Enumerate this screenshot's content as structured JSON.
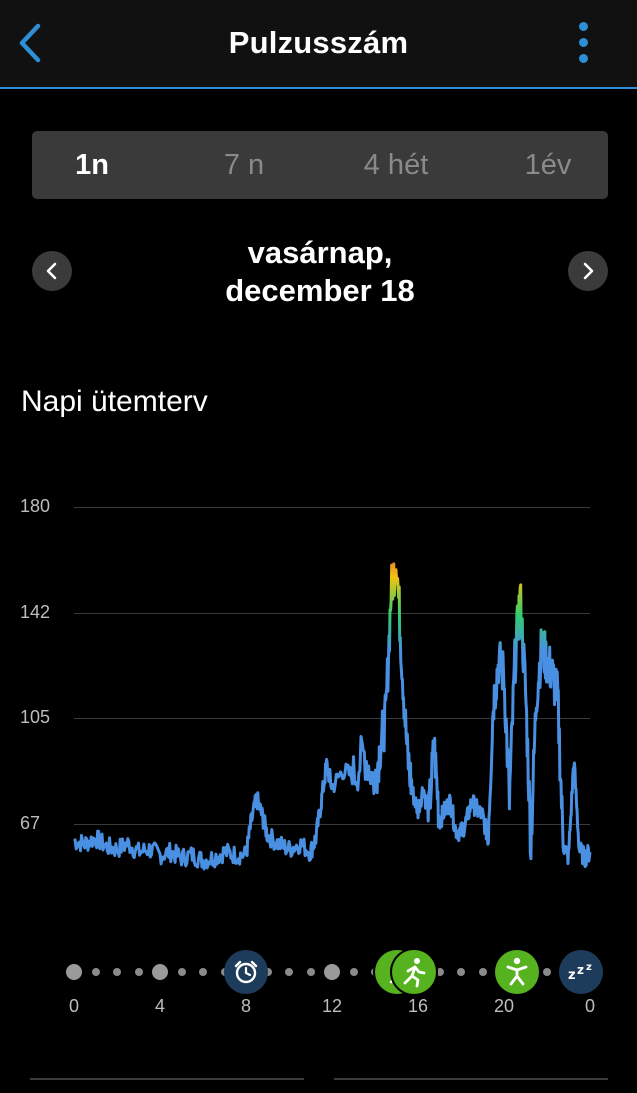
{
  "header": {
    "title": "Pulzusszám",
    "back_icon": "chevron-left-icon",
    "menu_icon": "kebab-menu-icon",
    "accent": "#2f8fd6"
  },
  "range_tabs": [
    {
      "label": "1n",
      "active": true
    },
    {
      "label": "7 n",
      "active": false
    },
    {
      "label": "4 hét",
      "active": false
    },
    {
      "label": "1év",
      "active": false
    }
  ],
  "date_nav": {
    "line1": "vasárnap,",
    "line2": "december 18"
  },
  "section_title": "Napi ütemterv",
  "chart_data": {
    "type": "line",
    "title": "",
    "xlabel": "",
    "ylabel": "",
    "y_ticks": [
      "180",
      "142",
      "105",
      "67"
    ],
    "ylim": [
      40,
      180
    ],
    "x_ticks": [
      "0",
      "4",
      "8",
      "12",
      "16",
      "20",
      "0"
    ],
    "xlim": [
      0,
      24
    ],
    "grid": true,
    "series": [
      {
        "x": [
          0,
          0.5,
          1,
          1.5,
          2,
          2.5,
          3,
          3.5,
          4,
          4.5,
          5,
          5.5,
          6,
          6.5,
          7,
          7.5,
          8,
          8.25,
          8.5,
          8.75,
          9,
          9.5,
          10,
          10.5,
          11,
          11.25,
          11.5,
          11.75,
          12,
          12.5,
          13,
          13.5,
          14,
          14.25,
          14.5,
          14.75,
          15,
          15.25,
          15.5,
          15.75,
          16,
          16.25,
          16.5,
          16.75,
          17,
          17.25,
          17.5,
          17.75,
          18,
          18.25,
          18.5,
          18.75,
          19,
          19.25,
          19.5,
          19.75,
          20,
          20.25,
          20.5,
          20.75,
          21,
          21.25,
          21.5,
          21.75,
          22,
          22.25,
          22.5,
          22.75,
          23,
          23.25,
          23.5,
          23.75,
          24
        ],
        "y": [
          61,
          60,
          62,
          59,
          58,
          60,
          57,
          58,
          56,
          57,
          55,
          56,
          54,
          55,
          57,
          56,
          56,
          68,
          76,
          70,
          63,
          60,
          58,
          60,
          57,
          62,
          75,
          88,
          80,
          86,
          84,
          92,
          82,
          95,
          105,
          150,
          162,
          125,
          92,
          78,
          72,
          80,
          70,
          95,
          68,
          72,
          75,
          65,
          64,
          68,
          75,
          72,
          70,
          62,
          110,
          125,
          120,
          75,
          124,
          148,
          115,
          60,
          112,
          130,
          125,
          120,
          112,
          60,
          55,
          90,
          58,
          55,
          57
        ],
        "color_scale": [
          "#4a90e2",
          "#2ecc71",
          "#f1c40f",
          "#e74c3c"
        ]
      }
    ]
  },
  "timeline": {
    "icons": [
      {
        "name": "alarm-clock-icon",
        "hour": 8,
        "bg": "#1d3b5a"
      },
      {
        "name": "activity-icon",
        "hour": 15,
        "bg": "#56b21f"
      },
      {
        "name": "running-icon",
        "hour": 15.8,
        "bg": "#56b21f"
      },
      {
        "name": "move-icon",
        "hour": 20.6,
        "bg": "#56b21f"
      },
      {
        "name": "sleep-icon",
        "hour": 23.6,
        "bg": "#1d3b5a"
      }
    ]
  }
}
